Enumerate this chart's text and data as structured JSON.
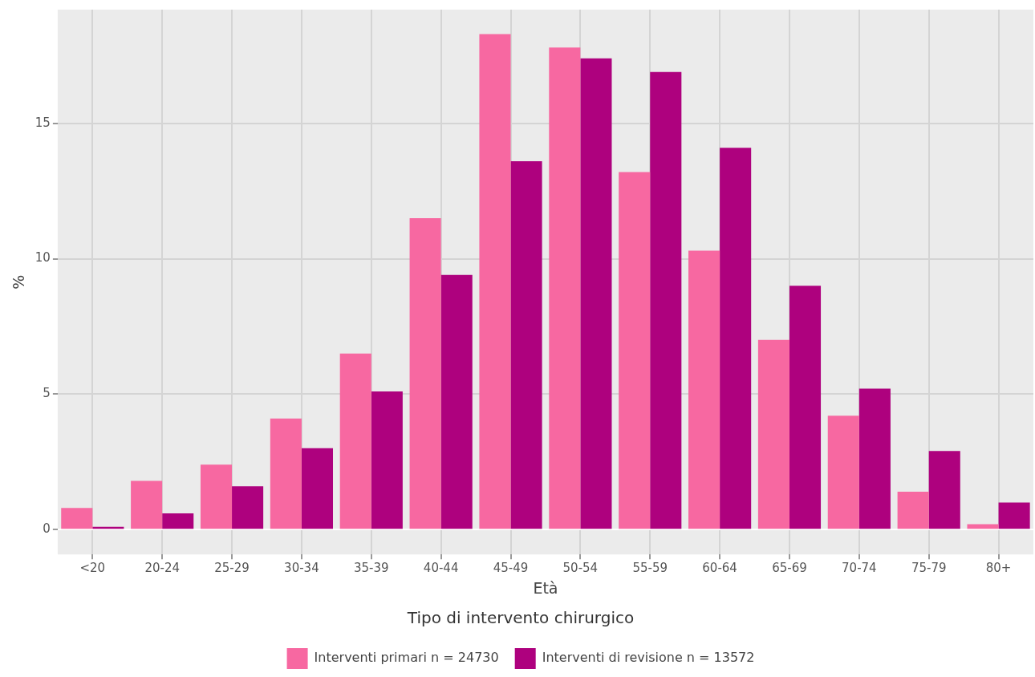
{
  "chart_data": {
    "type": "bar",
    "xlabel": "Età",
    "ylabel": "%",
    "legend_title": "Tipo di intervento chirurgico",
    "legend": "bottom",
    "grid": true,
    "categories": [
      "<20",
      "20-24",
      "25-29",
      "30-34",
      "35-39",
      "40-44",
      "45-49",
      "50-54",
      "55-59",
      "60-64",
      "65-69",
      "70-74",
      "75-79",
      "80+"
    ],
    "ylim": [
      -0.92,
      19.2
    ],
    "yticks": [
      0,
      5,
      10,
      15
    ],
    "series": [
      {
        "name": "Interventi primari n = 24730",
        "color": "#f768a1",
        "values": [
          0.8,
          1.8,
          2.4,
          4.1,
          6.5,
          11.5,
          18.3,
          17.8,
          13.2,
          10.3,
          7.0,
          4.2,
          1.4,
          0.2
        ]
      },
      {
        "name": "Interventi di revisione n = 13572",
        "color": "#ae017e",
        "values": [
          0.1,
          0.6,
          1.6,
          3.0,
          5.1,
          9.4,
          13.6,
          17.4,
          16.9,
          14.1,
          9.0,
          5.2,
          2.9,
          1.0
        ]
      }
    ]
  }
}
